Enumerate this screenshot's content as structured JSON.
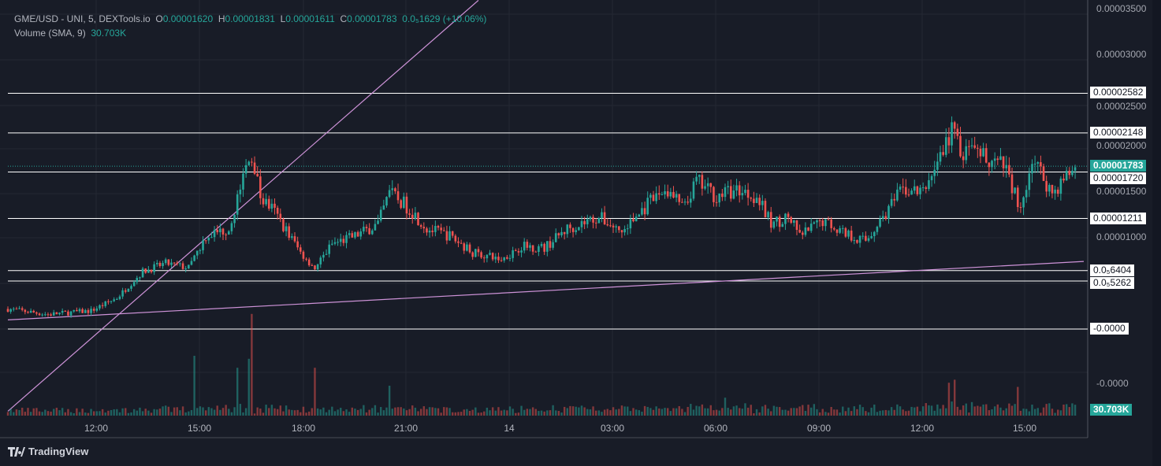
{
  "legend": {
    "symbol": "GME/USD - UNI, 5, DEXTools.io",
    "o_label": "O",
    "open": "0.00001620",
    "h_label": "H",
    "high": "0.00001831",
    "l_label": "L",
    "low": "0.00001611",
    "c_label": "C",
    "close": "0.00001783",
    "change": "0.0₅1629 (+10.06%)",
    "volume_label": "Volume (SMA, 9)",
    "volume_value": "30.703K"
  },
  "price_axis": [
    "0.00003500",
    "0.00003000",
    "0.00002500",
    "0.00002000",
    "0.00001500",
    "0.00001000",
    "-0.0000"
  ],
  "price_axis_values": [
    3.5,
    3.0,
    2.5,
    2.0,
    1.5,
    1.0,
    -0.6
  ],
  "horizontal_levels": [
    {
      "label": "0.00002582",
      "value": 2.582
    },
    {
      "label": "0.00002148",
      "value": 2.148
    },
    {
      "label": "0.00001720",
      "value": 1.72
    },
    {
      "label": "0.00001211",
      "value": 1.211
    },
    {
      "label": "0.0₅6404",
      "value": 0.6404
    },
    {
      "label": "0.0₅5262",
      "value": 0.5262
    },
    {
      "label": "-0.0000",
      "value": 0
    }
  ],
  "current_price": {
    "label": "0.00001783",
    "value": 1.783
  },
  "volume_tag": "30.703K",
  "time_axis": [
    "12:00",
    "15:00",
    "18:00",
    "21:00",
    "14",
    "03:00",
    "06:00",
    "09:00",
    "12:00",
    "15:00"
  ],
  "brand": "TradingView",
  "colors": {
    "up": "#26a69a",
    "down": "#ef5350",
    "line": "#ce93d8",
    "bg": "#181c27"
  },
  "chart_data": {
    "type": "candlestick",
    "title": "GME/USD - UNI, 5",
    "price_unit": "1e-5 USD",
    "interval_minutes": 5,
    "close_keypoints": [
      [
        0,
        0.22
      ],
      [
        14,
        0.16
      ],
      [
        29,
        0.2
      ],
      [
        38,
        0.34
      ],
      [
        47,
        0.63
      ],
      [
        55,
        0.72
      ],
      [
        63,
        0.67
      ],
      [
        69,
        1.02
      ],
      [
        77,
        1.1
      ],
      [
        82,
        1.66
      ],
      [
        85,
        1.92
      ],
      [
        88,
        1.45
      ],
      [
        93,
        1.28
      ],
      [
        102,
        0.84
      ],
      [
        107,
        0.67
      ],
      [
        113,
        0.93
      ],
      [
        121,
        1.02
      ],
      [
        129,
        1.15
      ],
      [
        133,
        1.49
      ],
      [
        140,
        1.32
      ],
      [
        146,
        1.1
      ],
      [
        154,
        1.02
      ],
      [
        162,
        0.84
      ],
      [
        172,
        0.76
      ],
      [
        179,
        0.91
      ],
      [
        187,
        0.89
      ],
      [
        195,
        1.1
      ],
      [
        206,
        1.23
      ],
      [
        214,
        1.06
      ],
      [
        223,
        1.36
      ],
      [
        229,
        1.53
      ],
      [
        236,
        1.32
      ],
      [
        240,
        1.62
      ],
      [
        247,
        1.45
      ],
      [
        255,
        1.53
      ],
      [
        261,
        1.45
      ],
      [
        266,
        1.15
      ],
      [
        272,
        1.23
      ],
      [
        276,
        1.02
      ],
      [
        284,
        1.19
      ],
      [
        294,
        1.02
      ],
      [
        299,
        0.97
      ],
      [
        305,
        1.23
      ],
      [
        312,
        1.53
      ],
      [
        319,
        1.49
      ],
      [
        324,
        1.84
      ],
      [
        330,
        2.22
      ],
      [
        332,
        1.92
      ],
      [
        341,
        1.88
      ],
      [
        348,
        1.75
      ],
      [
        353,
        1.32
      ],
      [
        357,
        1.88
      ],
      [
        364,
        1.49
      ],
      [
        372,
        1.78
      ]
    ],
    "volume_spikes_k": [
      [
        85,
        170
      ],
      [
        84,
        95
      ],
      [
        65,
        100
      ],
      [
        80,
        80
      ],
      [
        107,
        80
      ],
      [
        133,
        50
      ],
      [
        330,
        60
      ],
      [
        328,
        55
      ],
      [
        352,
        48
      ],
      [
        250,
        30
      ]
    ],
    "trendlines": [
      {
        "from": [
          0,
          -0.9
        ],
        "to": [
          164,
          3.6
        ]
      },
      {
        "from": [
          0,
          0.1
        ],
        "to": [
          375,
          0.74
        ]
      }
    ]
  }
}
